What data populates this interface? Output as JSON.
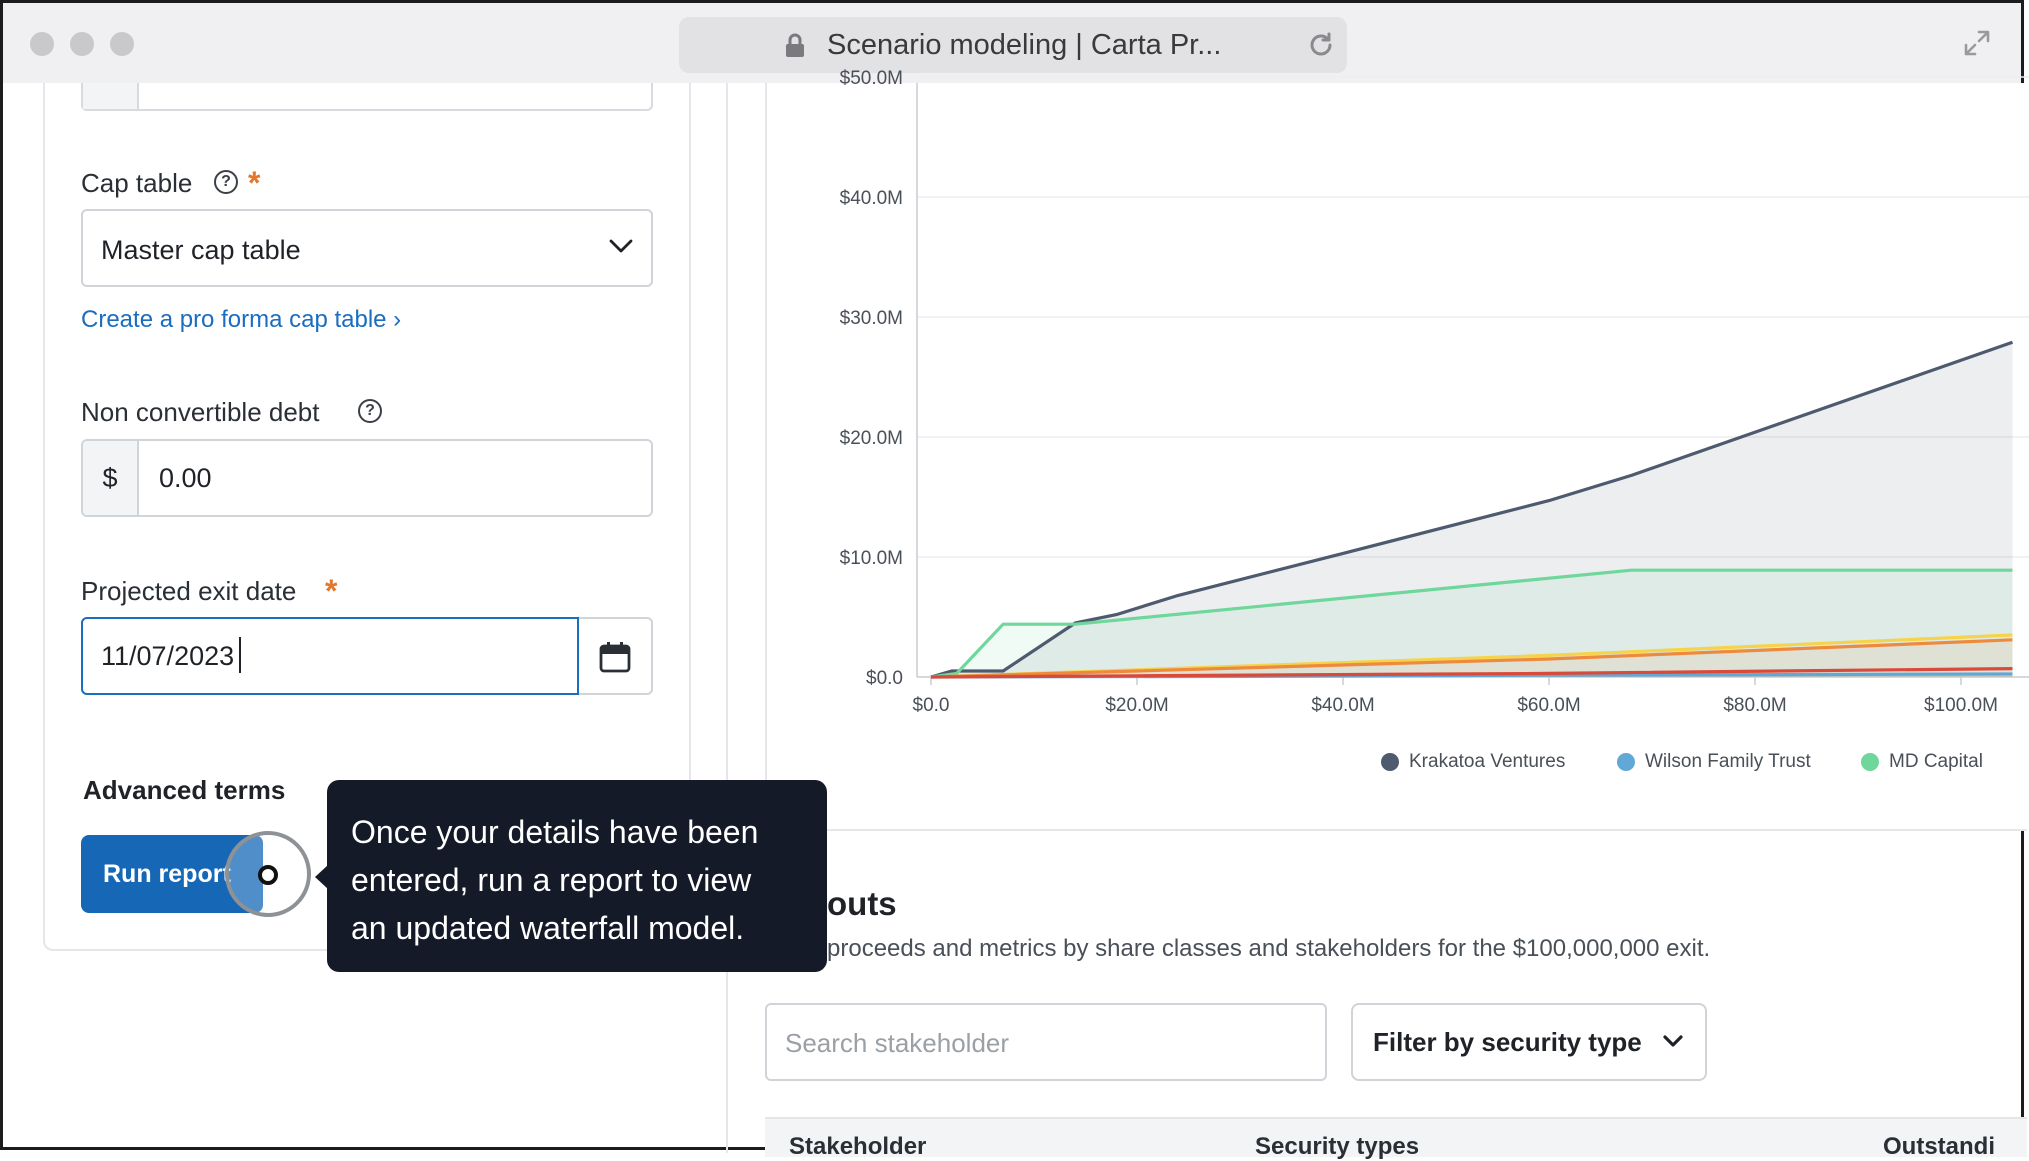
{
  "browser": {
    "tab_title": "Scenario modeling | Carta Pr..."
  },
  "form": {
    "cap_table_label": "Cap table",
    "cap_table_value": "Master cap table",
    "create_pro_forma_link": "Create a pro forma cap table ›",
    "non_convertible_debt_label": "Non convertible debt",
    "currency_prefix": "$",
    "non_convertible_debt_value": "0.00",
    "projected_exit_date_label": "Projected exit date",
    "projected_exit_date_value": "11/07/2023",
    "required_marker": "*",
    "help_glyph": "?",
    "advanced_terms_label": "Advanced terms",
    "run_report_label": "Run report"
  },
  "tooltip": {
    "line1": "Once your details have been",
    "line2": "entered, run a report to view",
    "line3": "an updated waterfall model."
  },
  "chart_data": {
    "type": "line",
    "x_tick_labels": [
      "$0.0",
      "$20.0M",
      "$40.0M",
      "$60.0M",
      "$80.0M",
      "$100.0M"
    ],
    "y_tick_labels": [
      "$0.0",
      "$10.0M",
      "$20.0M",
      "$30.0M",
      "$40.0M",
      "$50.0M"
    ],
    "xlim": [
      0,
      105
    ],
    "ylim": [
      0,
      50
    ],
    "grid": true,
    "legend_position": "bottom",
    "series": [
      {
        "name": "Krakatoa Ventures",
        "color": "#4e5a6e",
        "area": true,
        "x": [
          0,
          2,
          7,
          14,
          18,
          24,
          40,
          60,
          68,
          105
        ],
        "y": [
          0,
          0.5,
          0.5,
          4.5,
          5.2,
          6.8,
          10.3,
          14.7,
          16.8,
          27.9
        ]
      },
      {
        "name": "Wilson Family Trust",
        "color": "#62a8d6",
        "area": false,
        "x": [
          0,
          30,
          60,
          105
        ],
        "y": [
          0,
          0.05,
          0.15,
          0.25
        ]
      },
      {
        "name": "MD Capital",
        "color": "#6fd69c",
        "area": true,
        "x": [
          0,
          2.5,
          7,
          14,
          68,
          105
        ],
        "y": [
          0,
          0.3,
          4.4,
          4.4,
          8.9,
          8.9
        ]
      },
      {
        "name": "",
        "color": "#f5d34a",
        "area": false,
        "x": [
          0,
          20,
          60,
          105
        ],
        "y": [
          0,
          0.6,
          1.8,
          3.5
        ]
      },
      {
        "name": "",
        "color": "#ee8a3e",
        "area": true,
        "x": [
          0,
          20,
          60,
          105
        ],
        "y": [
          0,
          0.5,
          1.5,
          3.1
        ]
      },
      {
        "name": "",
        "color": "#d94a3b",
        "area": false,
        "x": [
          0,
          20,
          60,
          105
        ],
        "y": [
          0,
          0.1,
          0.3,
          0.7
        ]
      }
    ]
  },
  "payouts": {
    "title": "outs",
    "description": "proceeds and metrics by share classes and stakeholders for the $100,000,000 exit.",
    "search_placeholder": "Search stakeholder",
    "filter_label": "Filter by security type",
    "columns": [
      "Stakeholder",
      "Security types",
      "Outstandi"
    ]
  }
}
